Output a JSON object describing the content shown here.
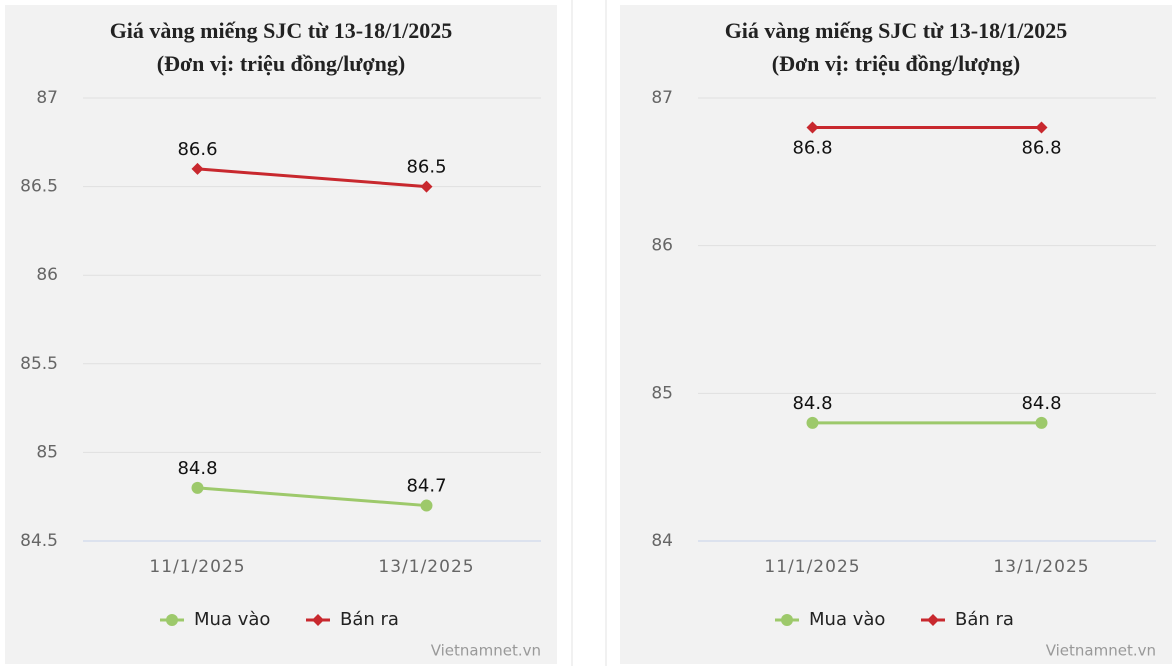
{
  "chart_data": [
    {
      "type": "line",
      "title": "Giá vàng miếng SJC từ 13-18/1/2025",
      "subtitle": "(Đơn vị: triệu đồng/lượng)",
      "categories": [
        "11/1/2025",
        "13/1/2025"
      ],
      "series": [
        {
          "name": "Mua vào",
          "color": "#9dc96b",
          "marker": "circle",
          "values": [
            84.8,
            84.7
          ]
        },
        {
          "name": "Bán ra",
          "color": "#c8282e",
          "marker": "diamond",
          "values": [
            86.6,
            86.5
          ]
        }
      ],
      "ylim": [
        84.5,
        87
      ],
      "yticks": [
        84.5,
        85,
        85.5,
        86,
        86.5,
        87
      ],
      "grid": true,
      "legend": "bottom",
      "source": "Vietnamnet.vn"
    },
    {
      "type": "line",
      "title": "Giá vàng miếng SJC từ 13-18/1/2025",
      "subtitle": "(Đơn vị: triệu đồng/lượng)",
      "categories": [
        "11/1/2025",
        "13/1/2025"
      ],
      "series": [
        {
          "name": "Mua vào",
          "color": "#9dc96b",
          "marker": "circle",
          "values": [
            84.8,
            84.8
          ]
        },
        {
          "name": "Bán ra",
          "color": "#c8282e",
          "marker": "diamond",
          "values": [
            86.8,
            86.8
          ]
        }
      ],
      "ylim": [
        84,
        87
      ],
      "yticks": [
        84,
        85,
        86,
        87
      ],
      "grid": true,
      "legend": "bottom",
      "source": "Vietnamnet.vn"
    }
  ]
}
